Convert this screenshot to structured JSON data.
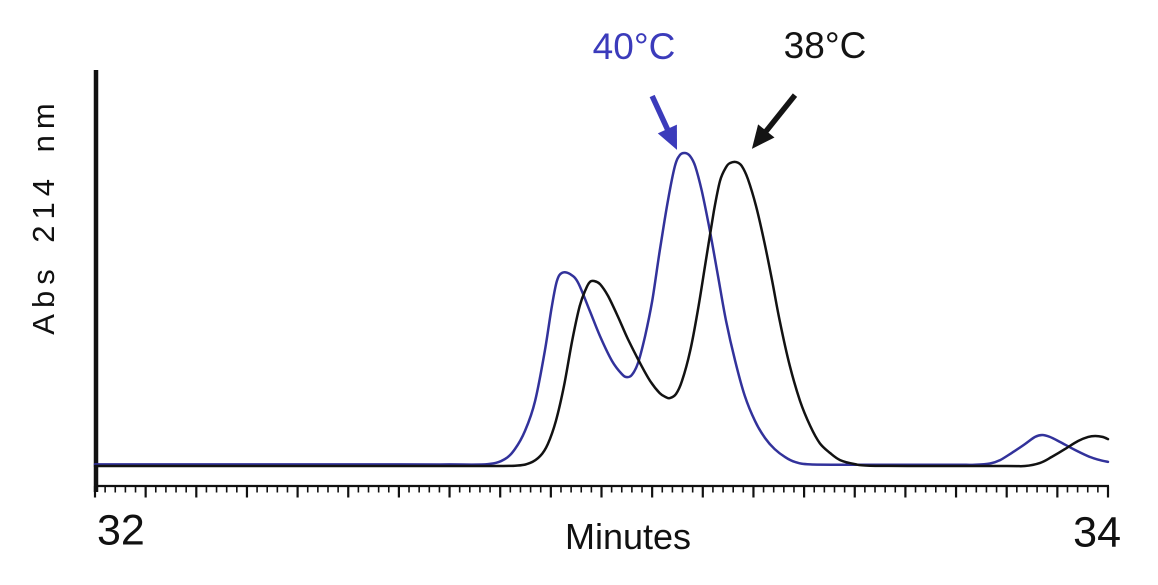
{
  "figure": {
    "background": "#ffffff",
    "axis_color": "#111111"
  },
  "chart_data": {
    "type": "line",
    "title": "",
    "xlabel": "Minutes",
    "ylabel": "Abs 214 nm",
    "xlim": [
      32,
      34
    ],
    "ylim": [
      0,
      1.35
    ],
    "grid": false,
    "legend_position": "none",
    "x_axis": {
      "labels": [
        "32",
        "34"
      ],
      "minor_tick_step": 0.02,
      "major_tick_step": 0.1
    },
    "series": [
      {
        "name": "40°C",
        "color": "#32329b",
        "points": [
          [
            32.0,
            0.005
          ],
          [
            32.2,
            0.005
          ],
          [
            32.4,
            0.005
          ],
          [
            32.6,
            0.005
          ],
          [
            32.7,
            0.005
          ],
          [
            32.776,
            0.006
          ],
          [
            32.809,
            0.022
          ],
          [
            32.829,
            0.054
          ],
          [
            32.849,
            0.112
          ],
          [
            32.869,
            0.208
          ],
          [
            32.888,
            0.367
          ],
          [
            32.902,
            0.511
          ],
          [
            32.912,
            0.591
          ],
          [
            32.922,
            0.617
          ],
          [
            32.938,
            0.613
          ],
          [
            32.954,
            0.585
          ],
          [
            32.977,
            0.495
          ],
          [
            32.997,
            0.415
          ],
          [
            33.021,
            0.335
          ],
          [
            33.04,
            0.294
          ],
          [
            33.05,
            0.284
          ],
          [
            33.06,
            0.291
          ],
          [
            33.072,
            0.329
          ],
          [
            33.086,
            0.415
          ],
          [
            33.1,
            0.527
          ],
          [
            33.115,
            0.687
          ],
          [
            33.131,
            0.847
          ],
          [
            33.145,
            0.958
          ],
          [
            33.155,
            0.994
          ],
          [
            33.165,
            1.0
          ],
          [
            33.175,
            0.99
          ],
          [
            33.185,
            0.958
          ],
          [
            33.198,
            0.879
          ],
          [
            33.214,
            0.751
          ],
          [
            33.23,
            0.607
          ],
          [
            33.246,
            0.463
          ],
          [
            33.264,
            0.335
          ],
          [
            33.283,
            0.224
          ],
          [
            33.303,
            0.144
          ],
          [
            33.323,
            0.089
          ],
          [
            33.342,
            0.054
          ],
          [
            33.362,
            0.029
          ],
          [
            33.382,
            0.013
          ],
          [
            33.412,
            0.005
          ],
          [
            33.5,
            0.004
          ],
          [
            33.6,
            0.004
          ],
          [
            33.7,
            0.004
          ],
          [
            33.737,
            0.004
          ],
          [
            33.767,
            0.008
          ],
          [
            33.787,
            0.019
          ],
          [
            33.81,
            0.042
          ],
          [
            33.836,
            0.07
          ],
          [
            33.856,
            0.093
          ],
          [
            33.87,
            0.099
          ],
          [
            33.885,
            0.093
          ],
          [
            33.905,
            0.077
          ],
          [
            33.935,
            0.051
          ],
          [
            33.964,
            0.029
          ],
          [
            33.984,
            0.019
          ],
          [
            34.0,
            0.013
          ]
        ]
      },
      {
        "name": "38°C",
        "color": "#121212",
        "points": [
          [
            32.0,
            0.0
          ],
          [
            32.2,
            0.0
          ],
          [
            32.4,
            0.0
          ],
          [
            32.6,
            0.0
          ],
          [
            32.75,
            0.0
          ],
          [
            32.829,
            0.001
          ],
          [
            32.859,
            0.01
          ],
          [
            32.879,
            0.032
          ],
          [
            32.894,
            0.07
          ],
          [
            32.91,
            0.144
          ],
          [
            32.926,
            0.256
          ],
          [
            32.942,
            0.399
          ],
          [
            32.957,
            0.511
          ],
          [
            32.969,
            0.565
          ],
          [
            32.977,
            0.588
          ],
          [
            32.985,
            0.591
          ],
          [
            32.997,
            0.581
          ],
          [
            33.013,
            0.543
          ],
          [
            33.032,
            0.479
          ],
          [
            33.052,
            0.406
          ],
          [
            33.076,
            0.329
          ],
          [
            33.096,
            0.272
          ],
          [
            33.115,
            0.233
          ],
          [
            33.127,
            0.22
          ],
          [
            33.135,
            0.217
          ],
          [
            33.147,
            0.23
          ],
          [
            33.159,
            0.272
          ],
          [
            33.175,
            0.367
          ],
          [
            33.19,
            0.495
          ],
          [
            33.206,
            0.655
          ],
          [
            33.222,
            0.815
          ],
          [
            33.234,
            0.911
          ],
          [
            33.246,
            0.955
          ],
          [
            33.254,
            0.968
          ],
          [
            33.266,
            0.971
          ],
          [
            33.277,
            0.958
          ],
          [
            33.289,
            0.917
          ],
          [
            33.305,
            0.831
          ],
          [
            33.321,
            0.719
          ],
          [
            33.337,
            0.591
          ],
          [
            33.352,
            0.463
          ],
          [
            33.372,
            0.319
          ],
          [
            33.392,
            0.208
          ],
          [
            33.412,
            0.128
          ],
          [
            33.431,
            0.073
          ],
          [
            33.451,
            0.042
          ],
          [
            33.471,
            0.019
          ],
          [
            33.5,
            0.006
          ],
          [
            33.53,
            0.001
          ],
          [
            33.65,
            0.0
          ],
          [
            33.8,
            0.0
          ],
          [
            33.836,
            0.0
          ],
          [
            33.866,
            0.01
          ],
          [
            33.889,
            0.029
          ],
          [
            33.915,
            0.054
          ],
          [
            33.941,
            0.08
          ],
          [
            33.961,
            0.093
          ],
          [
            33.975,
            0.096
          ],
          [
            33.989,
            0.093
          ],
          [
            34.0,
            0.086
          ]
        ]
      }
    ],
    "annotations": [
      {
        "text": "40°C",
        "color": "#3b3bbb",
        "arrow_from": [
          33.1,
          1.182
        ],
        "arrow_to": [
          33.149,
          1.01
        ]
      },
      {
        "text": "38°C",
        "color": "#141414",
        "arrow_from": [
          33.382,
          1.185
        ],
        "arrow_to": [
          33.297,
          1.013
        ]
      }
    ]
  }
}
